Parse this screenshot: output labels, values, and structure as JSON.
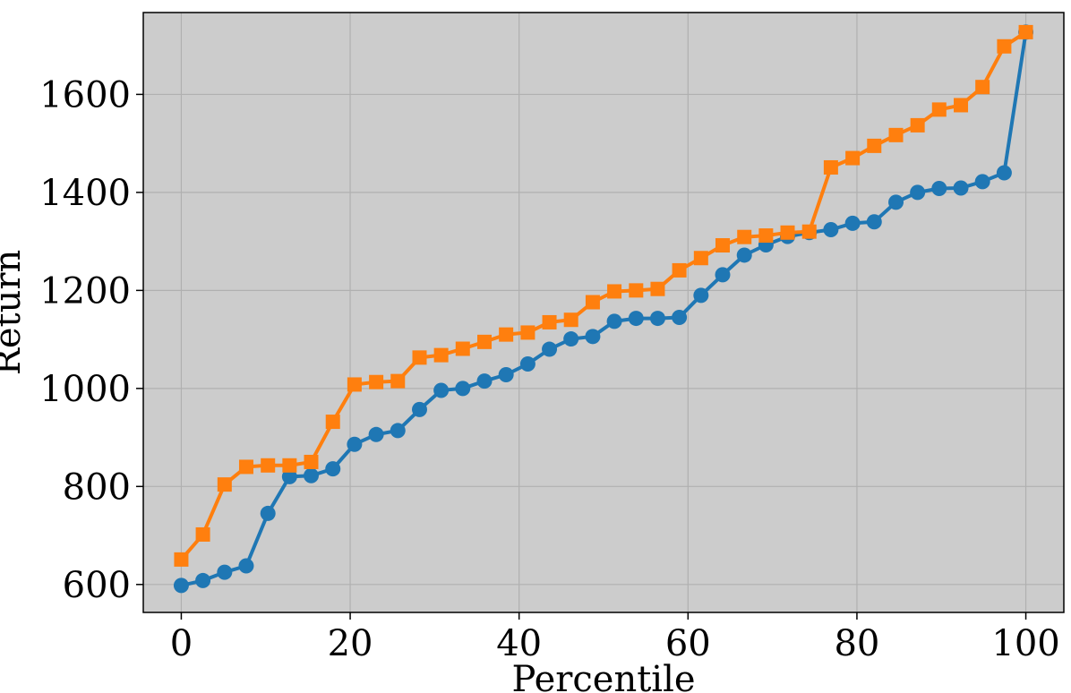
{
  "chart_data": {
    "type": "line",
    "title": "",
    "xlabel": "Percentile",
    "ylabel": "Return",
    "xlim": [
      -4.5,
      104.5
    ],
    "ylim": [
      543,
      1767
    ],
    "xticks": [
      0,
      20,
      40,
      60,
      80,
      100
    ],
    "yticks": [
      600,
      800,
      1000,
      1200,
      1400,
      1600
    ],
    "grid": true,
    "legend": "none",
    "background": "#cccccc",
    "series": [
      {
        "color": "#1f77b4",
        "marker": "circle",
        "x": [
          0,
          2.56,
          5.13,
          7.69,
          10.26,
          12.82,
          15.38,
          17.95,
          20.51,
          23.08,
          25.64,
          28.21,
          30.77,
          33.33,
          35.9,
          38.46,
          41.03,
          43.59,
          46.15,
          48.72,
          51.28,
          53.85,
          56.41,
          58.97,
          61.54,
          64.1,
          66.67,
          69.23,
          71.79,
          74.36,
          76.92,
          79.49,
          82.05,
          84.62,
          87.18,
          89.74,
          92.31,
          94.87,
          97.44,
          100
        ],
        "y": [
          598,
          608,
          625,
          638,
          745,
          820,
          822,
          836,
          886,
          906,
          914,
          957,
          996,
          1000,
          1015,
          1028,
          1050,
          1080,
          1101,
          1106,
          1137,
          1143,
          1143,
          1145,
          1190,
          1232,
          1272,
          1293,
          1310,
          1318,
          1324,
          1337,
          1340,
          1380,
          1400,
          1408,
          1409,
          1422,
          1440,
          1727
        ]
      },
      {
        "color": "#ff7f0e",
        "marker": "square",
        "x": [
          0,
          2.56,
          5.13,
          7.69,
          10.26,
          12.82,
          15.38,
          17.95,
          20.51,
          23.08,
          25.64,
          28.21,
          30.77,
          33.33,
          35.9,
          38.46,
          41.03,
          43.59,
          46.15,
          48.72,
          51.28,
          53.85,
          56.41,
          58.97,
          61.54,
          64.1,
          66.67,
          69.23,
          71.79,
          74.36,
          76.92,
          79.49,
          82.05,
          84.62,
          87.18,
          89.74,
          92.31,
          94.87,
          97.44,
          100
        ],
        "y": [
          651,
          702,
          804,
          840,
          843,
          843,
          850,
          932,
          1008,
          1013,
          1015,
          1063,
          1068,
          1081,
          1095,
          1110,
          1114,
          1135,
          1140,
          1176,
          1198,
          1200,
          1203,
          1241,
          1266,
          1292,
          1309,
          1312,
          1318,
          1320,
          1451,
          1470,
          1495,
          1517,
          1537,
          1569,
          1578,
          1615,
          1698,
          1727
        ]
      }
    ]
  }
}
